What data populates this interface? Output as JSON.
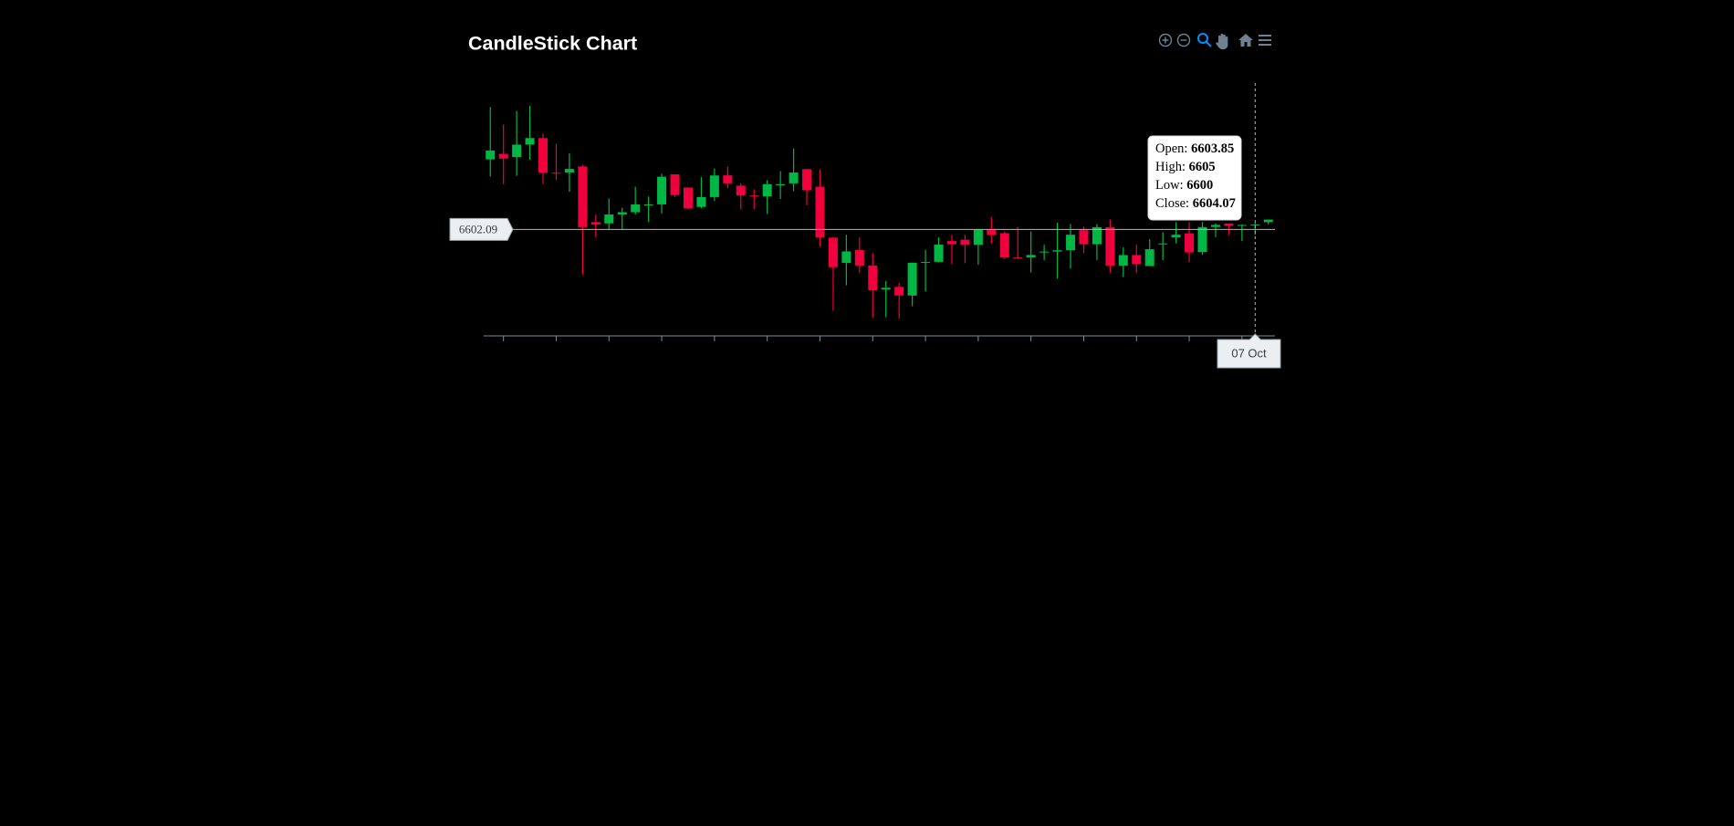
{
  "chart_data": {
    "type": "candlestick",
    "title": "CandleStick Chart",
    "categories": [
      null,
      null,
      null,
      null,
      null,
      null,
      null,
      null,
      null,
      null,
      null,
      null,
      null,
      null,
      null,
      null,
      null,
      null,
      null,
      null,
      null,
      null,
      null,
      null,
      null,
      null,
      null,
      null,
      null,
      null,
      null,
      null,
      null,
      null,
      null,
      null,
      null,
      null,
      null,
      null,
      null,
      null,
      null,
      null,
      null,
      null,
      null,
      null,
      null,
      null,
      null,
      null,
      null,
      null,
      null,
      null,
      null,
      null,
      null,
      null
    ],
    "ohlc": {
      "open": [
        6629.81,
        6632.01,
        6630.71,
        6635.65,
        6638.24,
        6624.53,
        6624.61,
        6627,
        6605,
        6604.5,
        6608.02,
        6608.91,
        6612,
        6612,
        6623.91,
        6618.69,
        6611,
        6614.9,
        6623.48,
        6619.43,
        6615.53,
        6615.19,
        6619.54,
        6620.33,
        6625.95,
        6619,
        6598.86,
        6588.86,
        6593.99,
        6587.81,
        6578.35,
        6579.38,
        6575.96,
        6588.92,
        6589.3,
        6597.5,
        6598.03,
        6595.97,
        6602,
        6600.63,
        6591.02,
        6591,
        6593.13,
        6593.34,
        6593.86,
        6601.81,
        6596.25,
        6602.99,
        6587.81,
        6591.97,
        6587.6,
        6596.44,
        6598.91,
        6600.55,
        6593.15,
        6603.07,
        6604.44,
        6603.5,
        6603.85,
        6604.98
      ],
      "high": [
        6650.5,
        6643.59,
        6648.95,
        6651,
        6640,
        6636.03,
        6632.2,
        6627.62,
        6608.03,
        6614.4,
        6610.68,
        6618.99,
        6615.13,
        6624.12,
        6623.91,
        6618.74,
        6622.78,
        6626.2,
        6627,
        6620.35,
        6617.93,
        6621.6,
        6625.17,
        6634.15,
        6626,
        6625.97,
        6598.88,
        6600,
        6598.89,
        6592.73,
        6581.72,
        6580.92,
        6589,
        6594,
        6598.89,
        6600,
        6600,
        6602.01,
        6607,
        6601.21,
        6603.08,
        6601.32,
        6596.01,
        6604.76,
        6604.28,
        6603.21,
        6604.2,
        6606,
        6595,
        6596.07,
        6598.21,
        6601,
        6605,
        6605,
        6605,
        6604.5,
        6604.44,
        6603.99,
        6605,
        6606
      ],
      "low": [
        6623.04,
        6620,
        6623.34,
        6629.67,
        6620,
        6621.68,
        6617,
        6584.22,
        6598.95,
        6602.26,
        6601.99,
        6608.01,
        6605.09,
        6608.43,
        6615,
        6610,
        6610.4,
        6613.33,
        6618.38,
        6610.05,
        6610,
        6608.2,
        6614.15,
        6617.24,
        6611.66,
        6595.27,
        6570,
        6580,
        6585,
        6567.14,
        6567.39,
        6566.77,
        6571.77,
        6577.55,
        6589.1,
        6588.39,
        6588.73,
        6588.17,
        6596.51,
        6590.39,
        6591,
        6585,
        6590,
        6582.63,
        6586.57,
        6592.78,
        6590,
        6584.99,
        6583.27,
        6585,
        6587.6,
        6590,
        6596.61,
        6589.14,
        6592,
        6599.09,
        6600,
        6597.5,
        6600,
        6604.07
      ],
      "close": [
        6633.33,
        6630.11,
        6635.65,
        6638.24,
        6624.47,
        6624.31,
        6626.02,
        6603.02,
        6604.01,
        6608.02,
        6608.91,
        6612,
        6612,
        6622.95,
        6615.67,
        6610.4,
        6614.9,
        6623.45,
        6620.35,
        6615.53,
        6615.19,
        6620,
        6620,
        6624.61,
        6617.58,
        6598.86,
        6587.16,
        6593.4,
        6587.81,
        6578,
        6579,
        6575.96,
        6588.92,
        6589.22,
        6596.08,
        6596.25,
        6595.97,
        6602,
        6599.95,
        6591.02,
        6591,
        6592,
        6593.34,
        6593.86,
        6600.01,
        6596.25,
        6602.99,
        6587.81,
        6591.96,
        6588.39,
        6594.27,
        6596.55,
        6600.02,
        6593.01,
        6603.06,
        6603.89,
        6603.5,
        6603.86,
        6604.07,
        6606
      ]
    },
    "colors": {
      "upward": "#00B746",
      "downward": "#F0003C"
    },
    "ylim": [
      6560,
      6660
    ],
    "crosshair": {
      "y": 6602.09,
      "x_label": "07 Oct"
    },
    "tooltip": {
      "labels": [
        "Open:",
        "High:",
        "Low:",
        "Close:"
      ]
    }
  }
}
